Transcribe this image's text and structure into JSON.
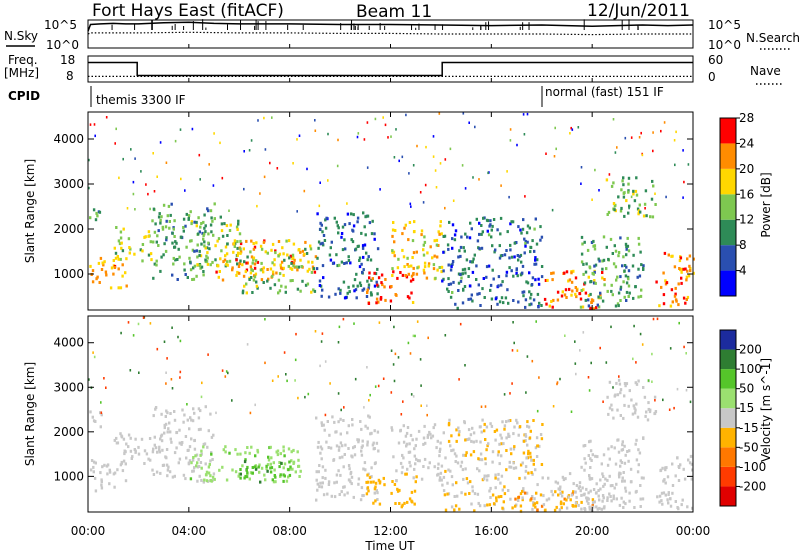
{
  "header": {
    "station": "Fort Hays East (fitACF)",
    "beam": "Beam 11",
    "date": "12/Jun/2011"
  },
  "upper_panels": {
    "nsky_label": "N.Sky",
    "nsky_ticks": [
      "10^5",
      "10^0"
    ],
    "nsearch_label": "N.Search",
    "nsearch_ticks": [
      "10^5",
      "10^0"
    ],
    "freq_label": "Freq.",
    "freq_unit": "[MHz]",
    "freq_ticks": [
      "18",
      "8"
    ],
    "nave_label": "Nave",
    "nave_ticks": [
      "60",
      "0"
    ],
    "cpid_label": "CPID",
    "cpid_modes": [
      "themis 3300 IF",
      "normal (fast) 151 IF"
    ]
  },
  "x_axis": {
    "label": "Time UT",
    "ticks": [
      "00:00",
      "04:00",
      "08:00",
      "12:00",
      "16:00",
      "20:00",
      "00:00"
    ]
  },
  "power_panel": {
    "ylabel": "Slant Range [km]",
    "yticks": [
      "1000",
      "2000",
      "3000",
      "4000"
    ],
    "colorbar_label": "Power [dB]",
    "colorbar_ticks": [
      "4",
      "8",
      "12",
      "16",
      "20",
      "24",
      "28"
    ],
    "colors": [
      "#0000ff",
      "#2a4fb0",
      "#2e8b57",
      "#7ec850",
      "#ffd700",
      "#ff8c00",
      "#ff0000"
    ]
  },
  "velocity_panel": {
    "ylabel": "Slant Range [km]",
    "yticks": [
      "1000",
      "2000",
      "3000",
      "4000"
    ],
    "colorbar_label": "Velocity [m s^-1]",
    "colorbar_ticks": [
      "200",
      "100",
      "50",
      "15",
      "-15",
      "-50",
      "-100",
      "-200"
    ],
    "colors": [
      "#1c2b9e",
      "#2e7d32",
      "#55c52a",
      "#9be070",
      "#c8c8c8",
      "#ffb300",
      "#ff7800",
      "#ff3b00",
      "#e00000"
    ]
  },
  "chart_data": [
    {
      "type": "line",
      "name": "N.Sky",
      "x": [
        0,
        0.1,
        0.5,
        1,
        1.5,
        2,
        3,
        4,
        5,
        6,
        8,
        10,
        12,
        14,
        16,
        18,
        20,
        22,
        23,
        24
      ],
      "y": [
        3,
        4.2,
        4.3,
        4.4,
        4.3,
        4.3,
        4.5,
        4.6,
        4.4,
        4.3,
        4.3,
        4.2,
        4.2,
        4.1,
        4.0,
        4.1,
        3.9,
        4.1,
        4.0,
        4.1
      ],
      "ylim": [
        0,
        5
      ],
      "ylabel": "N.Sky"
    },
    {
      "type": "line",
      "name": "N.Search",
      "x": [
        0,
        0.1,
        2,
        4,
        6,
        8,
        10,
        12,
        14,
        16,
        18,
        20,
        22,
        24
      ],
      "y": [
        2.5,
        2.7,
        2.7,
        2.8,
        2.7,
        2.7,
        2.6,
        2.6,
        2.5,
        2.5,
        2.5,
        2.4,
        2.5,
        2.5
      ],
      "ylim": [
        0,
        5
      ],
      "ylabel": "N.Search"
    },
    {
      "type": "line",
      "name": "Freq.",
      "x": [
        0,
        1.95,
        1.95,
        14.05,
        14.05,
        24
      ],
      "y": [
        15.5,
        15.5,
        10.5,
        10.5,
        15.5,
        15.5
      ],
      "ylim": [
        8,
        18
      ],
      "ylabel": "Freq. [MHz]"
    },
    {
      "type": "line",
      "name": "Nave",
      "x": [
        0,
        24
      ],
      "y": [
        13,
        13
      ],
      "ylim": [
        0,
        60
      ],
      "ylabel": "Nave"
    },
    {
      "type": "heatmap",
      "name": "Power",
      "xlabel": "Time UT",
      "ylabel": "Slant Range [km]",
      "xlim": [
        0,
        24
      ],
      "ylim": [
        200,
        4600
      ],
      "clim": [
        0,
        30
      ],
      "colorbar": "Power [dB]",
      "regions": [
        {
          "t": [
            0,
            1.5
          ],
          "r": [
            700,
            1400
          ],
          "v": 22
        },
        {
          "t": [
            0,
            0.5
          ],
          "r": [
            2100,
            2600
          ],
          "v": 12
        },
        {
          "t": [
            1,
            2.5
          ],
          "r": [
            1300,
            2100
          ],
          "v": 16
        },
        {
          "t": [
            2.5,
            5
          ],
          "r": [
            900,
            2600
          ],
          "v": 12
        },
        {
          "t": [
            4,
            6
          ],
          "r": [
            1200,
            2300
          ],
          "v": 14
        },
        {
          "t": [
            5,
            9
          ],
          "r": [
            900,
            1800
          ],
          "v": 22
        },
        {
          "t": [
            6,
            9
          ],
          "r": [
            600,
            1600
          ],
          "v": 14
        },
        {
          "t": [
            9,
            11.5
          ],
          "r": [
            500,
            2400
          ],
          "v": 8
        },
        {
          "t": [
            11,
            13
          ],
          "r": [
            350,
            1100
          ],
          "v": 26
        },
        {
          "t": [
            12,
            14
          ],
          "r": [
            900,
            2200
          ],
          "v": 20
        },
        {
          "t": [
            14,
            18
          ],
          "r": [
            250,
            2300
          ],
          "v": 8
        },
        {
          "t": [
            18,
            20.5
          ],
          "r": [
            250,
            1100
          ],
          "v": 24
        },
        {
          "t": [
            19.5,
            22
          ],
          "r": [
            250,
            1900
          ],
          "v": 12
        },
        {
          "t": [
            20.5,
            22.5
          ],
          "r": [
            2300,
            3200
          ],
          "v": 14
        },
        {
          "t": [
            22.5,
            24
          ],
          "r": [
            300,
            1500
          ],
          "v": 24
        }
      ]
    },
    {
      "type": "heatmap",
      "name": "Velocity",
      "xlabel": "Time UT",
      "ylabel": "Slant Range [km]",
      "xlim": [
        0,
        24
      ],
      "ylim": [
        200,
        4600
      ],
      "clim": [
        -200,
        200
      ],
      "colorbar": "Velocity [m s^-1]",
      "regions": [
        {
          "t": [
            0,
            1.5
          ],
          "r": [
            700,
            1400
          ],
          "v": 0
        },
        {
          "t": [
            0,
            0.5
          ],
          "r": [
            2100,
            2600
          ],
          "v": 0
        },
        {
          "t": [
            1,
            2.5
          ],
          "r": [
            1300,
            2100
          ],
          "v": 0
        },
        {
          "t": [
            2.5,
            5
          ],
          "r": [
            900,
            2600
          ],
          "v": 0
        },
        {
          "t": [
            4,
            8.5
          ],
          "r": [
            900,
            1700
          ],
          "v": 40
        },
        {
          "t": [
            6,
            8
          ],
          "r": [
            900,
            1500
          ],
          "v": 90
        },
        {
          "t": [
            9,
            11.5
          ],
          "r": [
            500,
            2400
          ],
          "v": 0
        },
        {
          "t": [
            11,
            13
          ],
          "r": [
            350,
            1100
          ],
          "v": -30
        },
        {
          "t": [
            12,
            14
          ],
          "r": [
            900,
            2200
          ],
          "v": 0
        },
        {
          "t": [
            14,
            18
          ],
          "r": [
            250,
            2300
          ],
          "v": -10
        },
        {
          "t": [
            16,
            20
          ],
          "r": [
            250,
            700
          ],
          "v": -40
        },
        {
          "t": [
            18,
            20.5
          ],
          "r": [
            250,
            1100
          ],
          "v": 0
        },
        {
          "t": [
            19.5,
            22
          ],
          "r": [
            250,
            1900
          ],
          "v": 0
        },
        {
          "t": [
            20.5,
            22.5
          ],
          "r": [
            2300,
            3200
          ],
          "v": 0
        },
        {
          "t": [
            22.5,
            24
          ],
          "r": [
            300,
            1500
          ],
          "v": 0
        }
      ]
    }
  ]
}
